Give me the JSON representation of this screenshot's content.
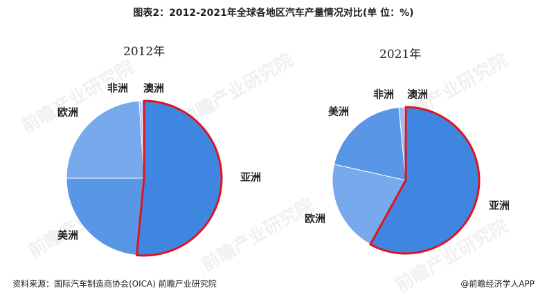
{
  "title": "图表2：2012-2021年全球各地区汽车产量情况对比(单 位：%)",
  "footer": {
    "source": "资料来源：国际汽车制造商协会(OICA) 前瞻产业研究院",
    "credit": "@前瞻经济学人APP"
  },
  "watermark": "前瞻产业研究院",
  "colors": {
    "asia": "#3f86e0",
    "america": "#5a96e6",
    "europe": "#77a9ec",
    "africa": "#98bef2",
    "oceania": "#b6d2f6",
    "highlight": "#e0141e"
  },
  "chart_data": [
    {
      "type": "pie",
      "title": "2012年",
      "slices": [
        {
          "label": "亚洲",
          "value": 51.5
        },
        {
          "label": "美洲",
          "value": 23.5
        },
        {
          "label": "欧洲",
          "value": 24.0
        },
        {
          "label": "非洲",
          "value": 0.5
        },
        {
          "label": "澳洲",
          "value": 0.5
        }
      ],
      "highlight": "亚洲"
    },
    {
      "type": "pie",
      "title": "2021年",
      "slices": [
        {
          "label": "亚洲",
          "value": 58.0
        },
        {
          "label": "欧洲",
          "value": 20.5
        },
        {
          "label": "美洲",
          "value": 20.0
        },
        {
          "label": "非洲",
          "value": 1.2
        },
        {
          "label": "澳洲",
          "value": 0.3
        }
      ],
      "highlight": "亚洲"
    }
  ]
}
